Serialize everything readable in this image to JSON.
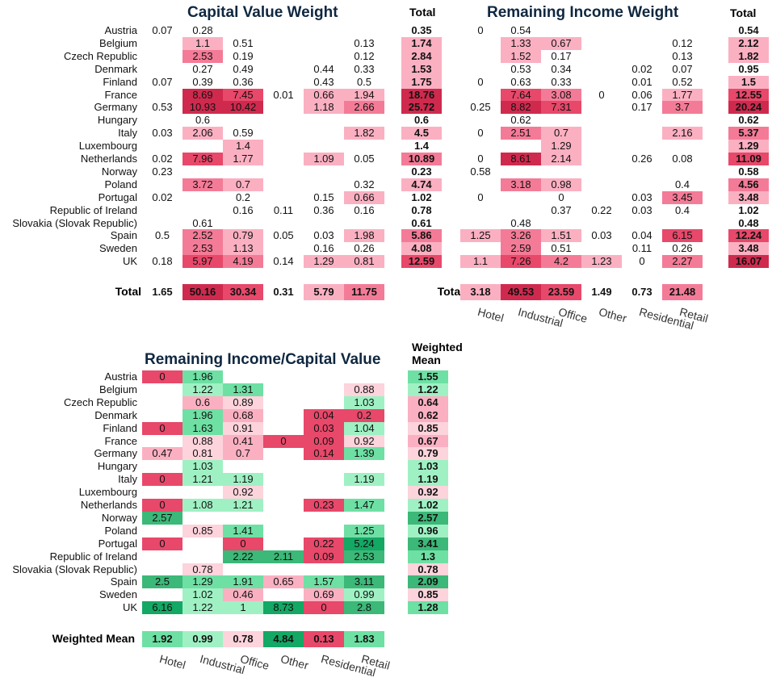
{
  "colors": {
    "neg_dark": "#cf2a4e",
    "neg_mid": "#e8486a",
    "neg_light1": "#f47b97",
    "neg_light2": "#fbb0c2",
    "neg_light3": "#fdd3dc",
    "pos_light": "#9ff1c4",
    "pos_mid": "#6ee0a4",
    "pos_dark": "#3cb878",
    "pos_darker": "#13a864"
  },
  "chart_data": [
    {
      "type": "heatmap",
      "title": "Capital Value Weight",
      "total_header": "Total",
      "total_label": "Total",
      "columns": [
        "Hotel",
        "Industrial",
        "Office",
        "Other",
        "Residential",
        "Retail"
      ],
      "rows": [
        "Austria",
        "Belgium",
        "Czech Republic",
        "Denmark",
        "Finland",
        "France",
        "Germany",
        "Hungary",
        "Italy",
        "Luxembourg",
        "Netherlands",
        "Norway",
        "Poland",
        "Portugal",
        "Republic of Ireland",
        "Slovakia (Slovak Republic)",
        "Spain",
        "Sweden",
        "UK"
      ],
      "values": [
        [
          "0.07",
          "0.28",
          "",
          "",
          "",
          ""
        ],
        [
          "",
          "1.1",
          "0.51",
          "",
          "",
          "0.13"
        ],
        [
          "",
          "2.53",
          "0.19",
          "",
          "",
          "0.12"
        ],
        [
          "",
          "0.27",
          "0.49",
          "",
          "0.44",
          "0.33"
        ],
        [
          "0.07",
          "0.39",
          "0.36",
          "",
          "0.43",
          "0.5"
        ],
        [
          "",
          "8.69",
          "7.45",
          "0.01",
          "0.66",
          "1.94"
        ],
        [
          "0.53",
          "10.93",
          "10.42",
          "",
          "1.18",
          "2.66"
        ],
        [
          "",
          "0.6",
          "",
          "",
          "",
          ""
        ],
        [
          "0.03",
          "2.06",
          "0.59",
          "",
          "",
          "1.82"
        ],
        [
          "",
          "",
          "1.4",
          "",
          "",
          ""
        ],
        [
          "0.02",
          "7.96",
          "1.77",
          "",
          "1.09",
          "0.05"
        ],
        [
          "0.23",
          "",
          "",
          "",
          "",
          ""
        ],
        [
          "",
          "3.72",
          "0.7",
          "",
          "",
          "0.32"
        ],
        [
          "0.02",
          "",
          "0.2",
          "",
          "0.15",
          "0.66"
        ],
        [
          "",
          "",
          "0.16",
          "0.11",
          "0.36",
          "0.16"
        ],
        [
          "",
          "0.61",
          "",
          "",
          "",
          ""
        ],
        [
          "0.5",
          "2.52",
          "0.79",
          "0.05",
          "0.03",
          "1.98"
        ],
        [
          "",
          "2.53",
          "1.13",
          "",
          "0.16",
          "0.26"
        ],
        [
          "0.18",
          "5.97",
          "4.19",
          "0.14",
          "1.29",
          "0.81"
        ]
      ],
      "row_totals": [
        "0.35",
        "1.74",
        "2.84",
        "1.53",
        "1.75",
        "18.76",
        "25.72",
        "0.6",
        "4.5",
        "1.4",
        "10.89",
        "0.23",
        "4.74",
        "1.02",
        "0.78",
        "0.61",
        "5.86",
        "4.08",
        "12.59"
      ],
      "column_totals": [
        "1.65",
        "50.16",
        "30.34",
        "0.31",
        "5.79",
        "11.75"
      ]
    },
    {
      "type": "heatmap",
      "title": "Remaining Income Weight",
      "total_header": "Total",
      "total_label": "Total",
      "columns": [
        "Hotel",
        "Industrial",
        "Office",
        "Other",
        "Residential",
        "Retail"
      ],
      "rows": [
        "Austria",
        "Belgium",
        "Czech Republic",
        "Denmark",
        "Finland",
        "France",
        "Germany",
        "Hungary",
        "Italy",
        "Luxembourg",
        "Netherlands",
        "Norway",
        "Poland",
        "Portugal",
        "Republic of Ireland",
        "Slovakia (Slovak Republic)",
        "Spain",
        "Sweden",
        "UK"
      ],
      "values": [
        [
          "0",
          "0.54",
          "",
          "",
          "",
          ""
        ],
        [
          "",
          "1.33",
          "0.67",
          "",
          "",
          "0.12"
        ],
        [
          "",
          "1.52",
          "0.17",
          "",
          "",
          "0.13"
        ],
        [
          "",
          "0.53",
          "0.34",
          "",
          "0.02",
          "0.07"
        ],
        [
          "0",
          "0.63",
          "0.33",
          "",
          "0.01",
          "0.52"
        ],
        [
          "",
          "7.64",
          "3.08",
          "0",
          "0.06",
          "1.77"
        ],
        [
          "0.25",
          "8.82",
          "7.31",
          "",
          "0.17",
          "3.7"
        ],
        [
          "",
          "0.62",
          "",
          "",
          "",
          ""
        ],
        [
          "0",
          "2.51",
          "0.7",
          "",
          "",
          "2.16"
        ],
        [
          "",
          "",
          "1.29",
          "",
          "",
          ""
        ],
        [
          "0",
          "8.61",
          "2.14",
          "",
          "0.26",
          "0.08"
        ],
        [
          "0.58",
          "",
          "",
          "",
          "",
          ""
        ],
        [
          "",
          "3.18",
          "0.98",
          "",
          "",
          "0.4"
        ],
        [
          "0",
          "",
          "0",
          "",
          "0.03",
          "3.45"
        ],
        [
          "",
          "",
          "0.37",
          "0.22",
          "0.03",
          "0.4"
        ],
        [
          "",
          "0.48",
          "",
          "",
          "",
          ""
        ],
        [
          "1.25",
          "3.26",
          "1.51",
          "0.03",
          "0.04",
          "6.15"
        ],
        [
          "",
          "2.59",
          "0.51",
          "",
          "0.11",
          "0.26"
        ],
        [
          "1.1",
          "7.26",
          "4.2",
          "1.23",
          "0",
          "2.27"
        ]
      ],
      "row_totals": [
        "0.54",
        "2.12",
        "1.82",
        "0.95",
        "1.5",
        "12.55",
        "20.24",
        "0.62",
        "5.37",
        "1.29",
        "11.09",
        "0.58",
        "4.56",
        "3.48",
        "1.02",
        "0.48",
        "12.24",
        "3.48",
        "16.07"
      ],
      "column_totals": [
        "3.18",
        "49.53",
        "23.59",
        "1.49",
        "0.73",
        "21.48"
      ]
    },
    {
      "type": "heatmap",
      "title": "Remaining Income/Capital Value",
      "total_header": "Weighted Mean",
      "total_label": "Weighted Mean",
      "columns": [
        "Hotel",
        "Industrial",
        "Office",
        "Other",
        "Residential",
        "Retail"
      ],
      "rows": [
        "Austria",
        "Belgium",
        "Czech Republic",
        "Denmark",
        "Finland",
        "France",
        "Germany",
        "Hungary",
        "Italy",
        "Luxembourg",
        "Netherlands",
        "Norway",
        "Poland",
        "Portugal",
        "Republic of Ireland",
        "Slovakia (Slovak Republic)",
        "Spain",
        "Sweden",
        "UK"
      ],
      "values": [
        [
          "0",
          "1.96",
          "",
          "",
          "",
          ""
        ],
        [
          "",
          "1.22",
          "1.31",
          "",
          "",
          "0.88"
        ],
        [
          "",
          "0.6",
          "0.89",
          "",
          "",
          "1.03"
        ],
        [
          "",
          "1.96",
          "0.68",
          "",
          "0.04",
          "0.2"
        ],
        [
          "0",
          "1.63",
          "0.91",
          "",
          "0.03",
          "1.04"
        ],
        [
          "",
          "0.88",
          "0.41",
          "0",
          "0.09",
          "0.92"
        ],
        [
          "0.47",
          "0.81",
          "0.7",
          "",
          "0.14",
          "1.39"
        ],
        [
          "",
          "1.03",
          "",
          "",
          "",
          ""
        ],
        [
          "0",
          "1.21",
          "1.19",
          "",
          "",
          "1.19"
        ],
        [
          "",
          "",
          "0.92",
          "",
          "",
          ""
        ],
        [
          "0",
          "1.08",
          "1.21",
          "",
          "0.23",
          "1.47"
        ],
        [
          "2.57",
          "",
          "",
          "",
          "",
          ""
        ],
        [
          "",
          "0.85",
          "1.41",
          "",
          "",
          "1.25"
        ],
        [
          "0",
          "",
          "0",
          "",
          "0.22",
          "5.24"
        ],
        [
          "",
          "",
          "2.22",
          "2.11",
          "0.09",
          "2.53"
        ],
        [
          "",
          "0.78",
          "",
          "",
          "",
          ""
        ],
        [
          "2.5",
          "1.29",
          "1.91",
          "0.65",
          "1.57",
          "3.11"
        ],
        [
          "",
          "1.02",
          "0.46",
          "",
          "0.69",
          "0.99"
        ],
        [
          "6.16",
          "1.22",
          "1",
          "8.73",
          "0",
          "2.8"
        ]
      ],
      "row_totals": [
        "1.55",
        "1.22",
        "0.64",
        "0.62",
        "0.85",
        "0.67",
        "0.79",
        "1.03",
        "1.19",
        "0.92",
        "1.02",
        "2.57",
        "0.96",
        "3.41",
        "1.3",
        "0.78",
        "2.09",
        "0.85",
        "1.28"
      ],
      "column_totals": [
        "1.92",
        "0.99",
        "0.78",
        "4.84",
        "0.13",
        "1.83"
      ]
    }
  ]
}
